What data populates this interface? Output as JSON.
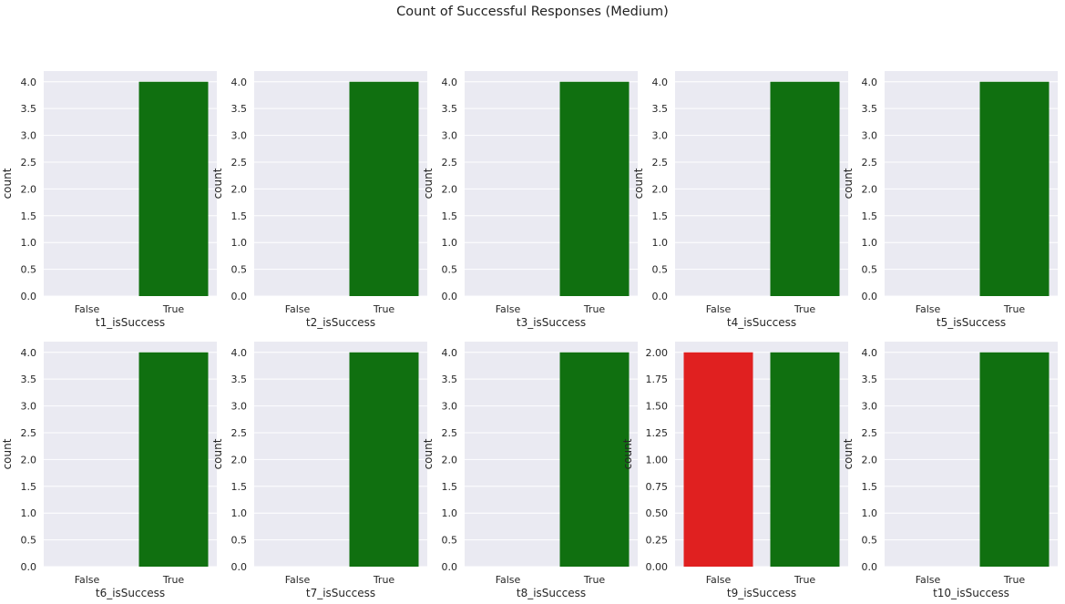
{
  "figure": {
    "title": "Count of Successful Responses (Medium)",
    "colors": {
      "background": "#eaeaf2",
      "grid": "#ffffff",
      "false_bar": "#e02020",
      "true_bar": "#107010"
    }
  },
  "chart_data": [
    {
      "type": "bar",
      "categories": [
        "False",
        "True"
      ],
      "values": [
        0,
        4
      ],
      "xlabel": "t1_isSuccess",
      "ylabel": "count",
      "ylim": [
        0,
        4.2
      ],
      "yticks": [
        "0.0",
        "0.5",
        "1.0",
        "1.5",
        "2.0",
        "2.5",
        "3.0",
        "3.5",
        "4.0"
      ]
    },
    {
      "type": "bar",
      "categories": [
        "False",
        "True"
      ],
      "values": [
        0,
        4
      ],
      "xlabel": "t2_isSuccess",
      "ylabel": "count",
      "ylim": [
        0,
        4.2
      ],
      "yticks": [
        "0.0",
        "0.5",
        "1.0",
        "1.5",
        "2.0",
        "2.5",
        "3.0",
        "3.5",
        "4.0"
      ]
    },
    {
      "type": "bar",
      "categories": [
        "False",
        "True"
      ],
      "values": [
        0,
        4
      ],
      "xlabel": "t3_isSuccess",
      "ylabel": "count",
      "ylim": [
        0,
        4.2
      ],
      "yticks": [
        "0.0",
        "0.5",
        "1.0",
        "1.5",
        "2.0",
        "2.5",
        "3.0",
        "3.5",
        "4.0"
      ]
    },
    {
      "type": "bar",
      "categories": [
        "False",
        "True"
      ],
      "values": [
        0,
        4
      ],
      "xlabel": "t4_isSuccess",
      "ylabel": "count",
      "ylim": [
        0,
        4.2
      ],
      "yticks": [
        "0.0",
        "0.5",
        "1.0",
        "1.5",
        "2.0",
        "2.5",
        "3.0",
        "3.5",
        "4.0"
      ]
    },
    {
      "type": "bar",
      "categories": [
        "False",
        "True"
      ],
      "values": [
        0,
        4
      ],
      "xlabel": "t5_isSuccess",
      "ylabel": "count",
      "ylim": [
        0,
        4.2
      ],
      "yticks": [
        "0.0",
        "0.5",
        "1.0",
        "1.5",
        "2.0",
        "2.5",
        "3.0",
        "3.5",
        "4.0"
      ]
    },
    {
      "type": "bar",
      "categories": [
        "False",
        "True"
      ],
      "values": [
        0,
        4
      ],
      "xlabel": "t6_isSuccess",
      "ylabel": "count",
      "ylim": [
        0,
        4.2
      ],
      "yticks": [
        "0.0",
        "0.5",
        "1.0",
        "1.5",
        "2.0",
        "2.5",
        "3.0",
        "3.5",
        "4.0"
      ]
    },
    {
      "type": "bar",
      "categories": [
        "False",
        "True"
      ],
      "values": [
        0,
        4
      ],
      "xlabel": "t7_isSuccess",
      "ylabel": "count",
      "ylim": [
        0,
        4.2
      ],
      "yticks": [
        "0.0",
        "0.5",
        "1.0",
        "1.5",
        "2.0",
        "2.5",
        "3.0",
        "3.5",
        "4.0"
      ]
    },
    {
      "type": "bar",
      "categories": [
        "False",
        "True"
      ],
      "values": [
        0,
        4
      ],
      "xlabel": "t8_isSuccess",
      "ylabel": "count",
      "ylim": [
        0,
        4.2
      ],
      "yticks": [
        "0.0",
        "0.5",
        "1.0",
        "1.5",
        "2.0",
        "2.5",
        "3.0",
        "3.5",
        "4.0"
      ]
    },
    {
      "type": "bar",
      "categories": [
        "False",
        "True"
      ],
      "values": [
        2,
        2
      ],
      "xlabel": "t9_isSuccess",
      "ylabel": "count",
      "ylim": [
        0,
        2.1
      ],
      "yticks": [
        "0.00",
        "0.25",
        "0.50",
        "0.75",
        "1.00",
        "1.25",
        "1.50",
        "1.75",
        "2.00"
      ]
    },
    {
      "type": "bar",
      "categories": [
        "False",
        "True"
      ],
      "values": [
        0,
        4
      ],
      "xlabel": "t10_isSuccess",
      "ylabel": "count",
      "ylim": [
        0,
        4.2
      ],
      "yticks": [
        "0.0",
        "0.5",
        "1.0",
        "1.5",
        "2.0",
        "2.5",
        "3.0",
        "3.5",
        "4.0"
      ]
    }
  ]
}
